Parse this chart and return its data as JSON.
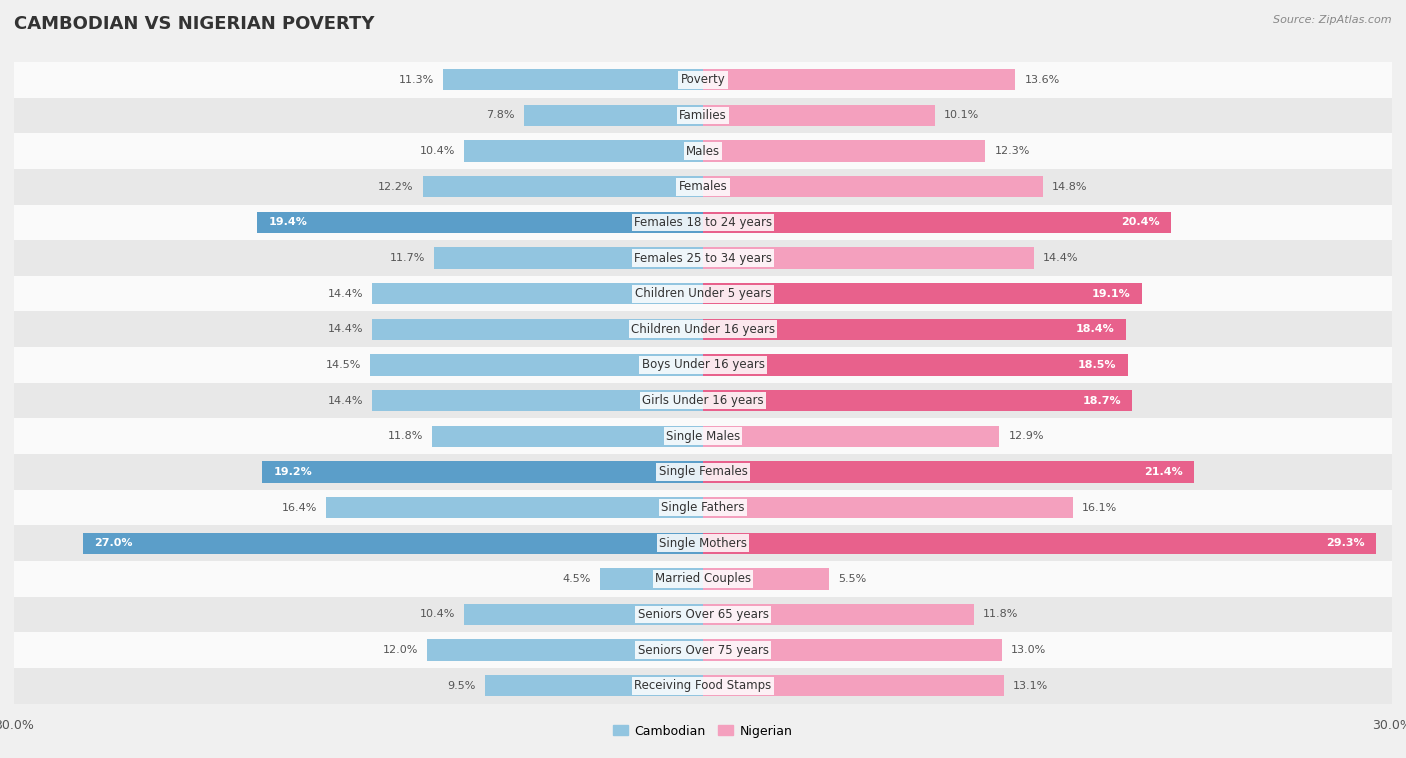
{
  "title": "CAMBODIAN VS NIGERIAN POVERTY",
  "source": "Source: ZipAtlas.com",
  "categories": [
    "Poverty",
    "Families",
    "Males",
    "Females",
    "Females 18 to 24 years",
    "Females 25 to 34 years",
    "Children Under 5 years",
    "Children Under 16 years",
    "Boys Under 16 years",
    "Girls Under 16 years",
    "Single Males",
    "Single Females",
    "Single Fathers",
    "Single Mothers",
    "Married Couples",
    "Seniors Over 65 years",
    "Seniors Over 75 years",
    "Receiving Food Stamps"
  ],
  "cambodian": [
    11.3,
    7.8,
    10.4,
    12.2,
    19.4,
    11.7,
    14.4,
    14.4,
    14.5,
    14.4,
    11.8,
    19.2,
    16.4,
    27.0,
    4.5,
    10.4,
    12.0,
    9.5
  ],
  "nigerian": [
    13.6,
    10.1,
    12.3,
    14.8,
    20.4,
    14.4,
    19.1,
    18.4,
    18.5,
    18.7,
    12.9,
    21.4,
    16.1,
    29.3,
    5.5,
    11.8,
    13.0,
    13.1
  ],
  "cambodian_color": "#92c5e0",
  "nigerian_color": "#f4a0be",
  "cambodian_label": "Cambodian",
  "nigerian_label": "Nigerian",
  "highlight_cambodian": [
    4,
    11,
    13
  ],
  "highlight_nigerian": [
    4,
    6,
    7,
    8,
    9,
    11,
    13
  ],
  "highlight_cambodian_color": "#5b9ec9",
  "highlight_nigerian_color": "#e8618c",
  "xlim": 30.0,
  "bar_height": 0.6,
  "background_color": "#f0f0f0",
  "row_colors": [
    "#fafafa",
    "#e8e8e8"
  ],
  "title_fontsize": 13,
  "label_fontsize": 8.5,
  "value_fontsize": 8.0
}
